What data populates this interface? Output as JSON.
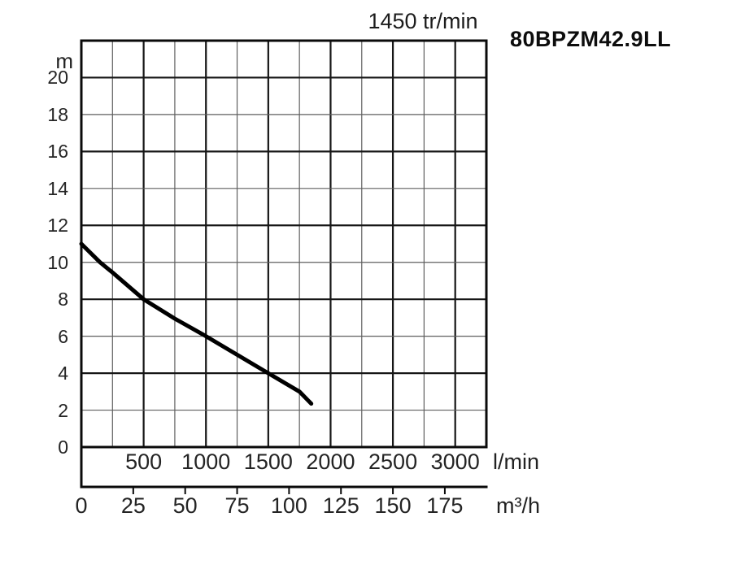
{
  "chart_data": {
    "type": "line",
    "title": "1450 tr/min",
    "model": "80BPZM42.9LL",
    "grid": true,
    "legend": false,
    "y_axis": {
      "unit": "m",
      "min": 0,
      "max": 22,
      "grid_step": 2,
      "major_step": 4,
      "ticks": [
        20,
        18,
        16,
        14,
        12,
        10,
        8,
        6,
        4,
        2,
        0
      ]
    },
    "x_axis": {
      "unit": "l/min",
      "min": 0,
      "max": 3250,
      "grid_step": 250,
      "major_step": 500,
      "ticks": [
        500,
        1000,
        1500,
        2000,
        2500,
        3000
      ]
    },
    "x_axis2": {
      "unit": "m³/h",
      "min": 0,
      "max": 187.5,
      "tick_step": 25,
      "ticks": [
        0,
        25,
        50,
        75,
        100,
        125,
        150,
        175
      ],
      "lmin_per_unit": 16.6667
    },
    "series": [
      {
        "name": "80BPZM42.9LL head curve",
        "points_lmin_m": [
          [
            0,
            11.0
          ],
          [
            150,
            10.0
          ],
          [
            250,
            9.45
          ],
          [
            500,
            8.0
          ],
          [
            750,
            6.95
          ],
          [
            1000,
            6.0
          ],
          [
            1250,
            5.0
          ],
          [
            1500,
            4.0
          ],
          [
            1750,
            3.0
          ],
          [
            1845,
            2.35
          ]
        ]
      }
    ]
  },
  "colors": {
    "background": "#ffffff",
    "curve": "#000000",
    "border": "#0a0a0a",
    "grid_major": "#161616",
    "grid_minor": "#5f5f5f",
    "text": "#222222"
  }
}
